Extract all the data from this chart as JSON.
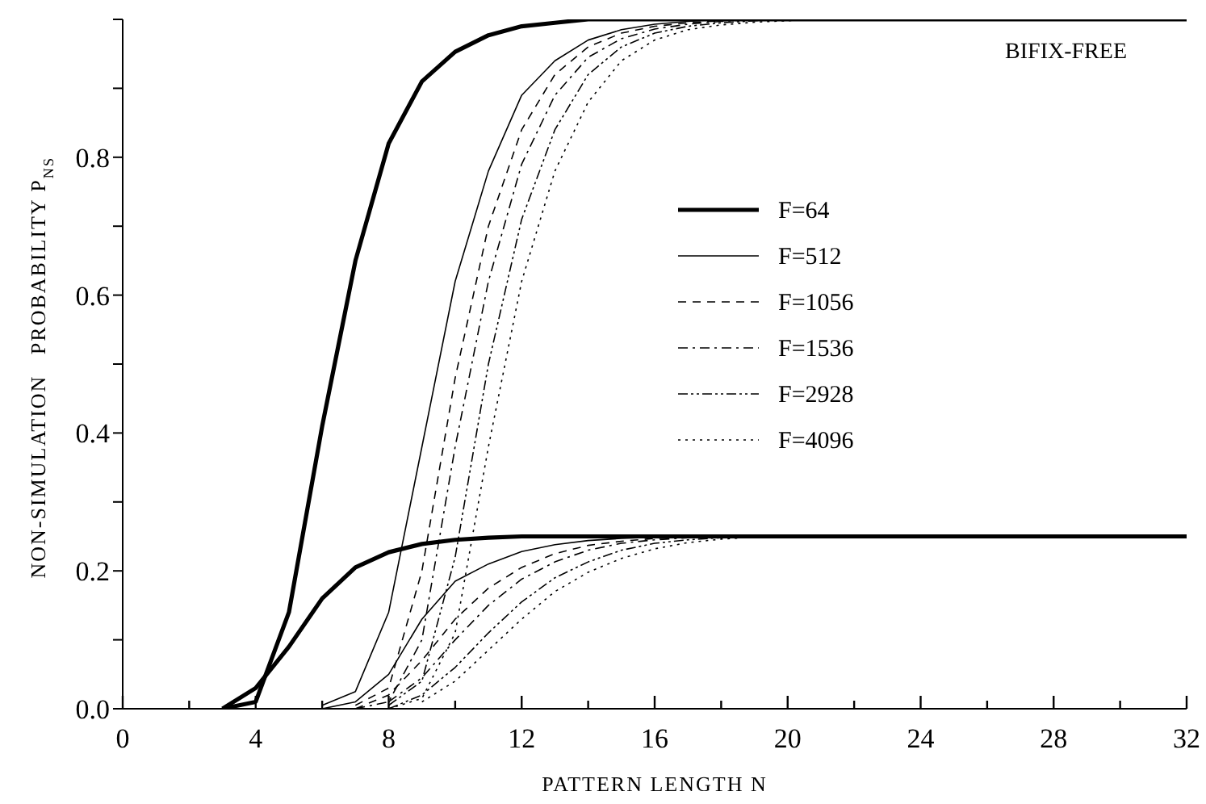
{
  "chart_data": {
    "type": "line",
    "xlabel": "PATTERN LENGTH N",
    "ylabel": "NON-SIMULATION   PROBABILITY P$_{NS}$",
    "annotations": [
      "BIFIX-FREE"
    ],
    "xlim": [
      0,
      32
    ],
    "ylim": [
      0,
      1
    ],
    "xticks": [
      0,
      {
        "value": 2,
        "label": null
      },
      4,
      {
        "value": 6,
        "label": null
      },
      8,
      {
        "value": 10,
        "label": null
      },
      12,
      {
        "value": 14,
        "label": null
      },
      16,
      {
        "value": 18,
        "label": null
      },
      20,
      {
        "value": 22,
        "label": null
      },
      24,
      {
        "value": 26,
        "label": null
      },
      28,
      {
        "value": 30,
        "label": null
      },
      32
    ],
    "yticks": [
      {
        "value": 0,
        "label": "0.0"
      },
      {
        "value": 0.1,
        "label": null
      },
      0.2,
      {
        "value": 0.3,
        "label": null
      },
      0.4,
      {
        "value": 0.5,
        "label": null
      },
      0.6,
      {
        "value": 0.7,
        "label": null
      },
      0.8,
      {
        "value": 0.9,
        "label": null
      },
      {
        "value": 1,
        "label": null
      }
    ],
    "grid": false,
    "legend": "right",
    "marker": "none",
    "series": [
      {
        "name": "F=64",
        "color": "#000000",
        "line_style": "solid",
        "x": [
          3,
          4,
          5,
          6,
          7,
          8,
          9,
          10,
          11,
          12,
          13,
          14,
          32
        ],
        "values": [
          0,
          0.01,
          0.14,
          0.41,
          0.65,
          0.82,
          0.91,
          0.953,
          0.977,
          0.99,
          0.995,
          1,
          1
        ]
      },
      {
        "name": "F=512",
        "color": "#000000",
        "line_style": "solid",
        "x": [
          6,
          7,
          8,
          9,
          10,
          11,
          12,
          13,
          14,
          15,
          16,
          17,
          18,
          32
        ],
        "values": [
          0.005,
          0.025,
          0.14,
          0.38,
          0.62,
          0.78,
          0.89,
          0.94,
          0.97,
          0.985,
          0.993,
          0.997,
          1,
          1
        ]
      },
      {
        "name": "F=1056",
        "color": "#000000",
        "line_style": "dashed",
        "x": [
          7,
          8,
          9,
          10,
          11,
          12,
          13,
          14,
          15,
          16,
          17,
          18,
          19,
          32
        ],
        "values": [
          0.005,
          0.03,
          0.2,
          0.48,
          0.7,
          0.84,
          0.92,
          0.96,
          0.98,
          0.99,
          0.995,
          0.998,
          1,
          1
        ]
      },
      {
        "name": "F=1536",
        "color": "#000000",
        "line_style": "dashdot",
        "x": [
          7,
          8,
          9,
          10,
          11,
          12,
          13,
          14,
          15,
          16,
          17,
          18,
          19,
          32
        ],
        "values": [
          0,
          0.01,
          0.1,
          0.38,
          0.62,
          0.79,
          0.89,
          0.945,
          0.972,
          0.986,
          0.993,
          0.997,
          1,
          1
        ]
      },
      {
        "name": "F=2928",
        "color": "#000000",
        "line_style": "dashdotdot",
        "x": [
          8,
          9,
          10,
          11,
          12,
          13,
          14,
          15,
          16,
          17,
          18,
          19,
          20,
          32
        ],
        "values": [
          0.005,
          0.04,
          0.22,
          0.5,
          0.71,
          0.84,
          0.92,
          0.96,
          0.98,
          0.99,
          0.995,
          0.998,
          1,
          1
        ]
      },
      {
        "name": "F=4096",
        "color": "#000000",
        "line_style": "dotted",
        "x": [
          8,
          9,
          10,
          11,
          12,
          13,
          14,
          15,
          16,
          17,
          18,
          19,
          20,
          21,
          32
        ],
        "values": [
          0,
          0.015,
          0.11,
          0.38,
          0.62,
          0.78,
          0.88,
          0.94,
          0.97,
          0.985,
          0.992,
          0.996,
          0.998,
          1,
          1
        ]
      },
      {
        "color": "#000000",
        "line_style": "solid",
        "x": [
          3,
          4,
          5,
          6,
          7,
          8,
          9,
          10,
          11,
          12,
          32
        ],
        "values": [
          0,
          0.03,
          0.09,
          0.16,
          0.205,
          0.227,
          0.239,
          0.245,
          0.248,
          0.25,
          0.25
        ]
      },
      {
        "color": "#000000",
        "line_style": "solid",
        "x": [
          6,
          7,
          8,
          9,
          10,
          11,
          12,
          13,
          14,
          15,
          16,
          17,
          32
        ],
        "values": [
          0,
          0.01,
          0.05,
          0.13,
          0.185,
          0.21,
          0.228,
          0.238,
          0.244,
          0.247,
          0.249,
          0.25,
          0.25
        ]
      },
      {
        "color": "#000000",
        "line_style": "dashed",
        "x": [
          7,
          8,
          9,
          10,
          11,
          12,
          13,
          14,
          15,
          16,
          17,
          18,
          32
        ],
        "values": [
          0,
          0.02,
          0.07,
          0.13,
          0.175,
          0.205,
          0.225,
          0.237,
          0.243,
          0.247,
          0.249,
          0.25,
          0.25
        ]
      },
      {
        "color": "#000000",
        "line_style": "dashdot",
        "x": [
          8,
          9,
          10,
          11,
          12,
          13,
          14,
          15,
          16,
          17,
          18,
          32
        ],
        "values": [
          0.01,
          0.045,
          0.1,
          0.15,
          0.188,
          0.213,
          0.23,
          0.24,
          0.245,
          0.248,
          0.25,
          0.25
        ]
      },
      {
        "color": "#000000",
        "line_style": "dashdotdot",
        "x": [
          8,
          9,
          10,
          11,
          12,
          13,
          14,
          15,
          16,
          17,
          18,
          19,
          32
        ],
        "values": [
          0,
          0.02,
          0.06,
          0.11,
          0.155,
          0.19,
          0.213,
          0.23,
          0.24,
          0.245,
          0.248,
          0.25,
          0.25
        ]
      },
      {
        "color": "#000000",
        "line_style": "dotted",
        "x": [
          9,
          10,
          11,
          12,
          13,
          14,
          15,
          16,
          17,
          18,
          19,
          20,
          32
        ],
        "values": [
          0.01,
          0.04,
          0.085,
          0.13,
          0.17,
          0.198,
          0.218,
          0.232,
          0.241,
          0.246,
          0.249,
          0.25,
          0.25
        ]
      }
    ]
  }
}
